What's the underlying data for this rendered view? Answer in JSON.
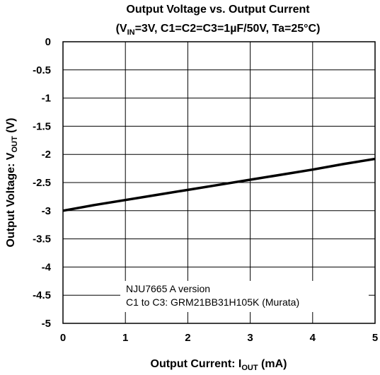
{
  "chart_data": {
    "type": "line",
    "title_line1": "Output Voltage vs. Output Current",
    "title_line2": {
      "open": "(V",
      "sub": "IN",
      "rest": "=3V, C1=C2=C3=1µF/50V, Ta=25°C)"
    },
    "xlabel": {
      "main": "Output Current: I",
      "sub": "OUT",
      "unit": " (mA)"
    },
    "ylabel": {
      "main": "Output Voltage: V",
      "sub": "OUT",
      "unit": " (V)"
    },
    "xlim": [
      0,
      5
    ],
    "ylim": [
      -5,
      0
    ],
    "x_ticks": [
      "0",
      "1",
      "2",
      "3",
      "4",
      "5"
    ],
    "y_ticks": [
      "0",
      "-0.5",
      "-1",
      "-1.5",
      "-2",
      "-2.5",
      "-3",
      "-3.5",
      "-4",
      "-4.5",
      "-5"
    ],
    "grid": true,
    "series": [
      {
        "color": "#000000",
        "x": [
          0,
          0.5,
          1,
          1.5,
          2,
          2.5,
          3,
          3.5,
          4,
          4.5,
          5
        ],
        "y": [
          -3.0,
          -2.9,
          -2.81,
          -2.72,
          -2.63,
          -2.54,
          -2.45,
          -2.36,
          -2.27,
          -2.17,
          -2.08
        ]
      }
    ],
    "annotation": {
      "line1": "NJU7665 A version",
      "line2": "C1 to C3: GRM21BB31H105K (Murata)"
    }
  }
}
